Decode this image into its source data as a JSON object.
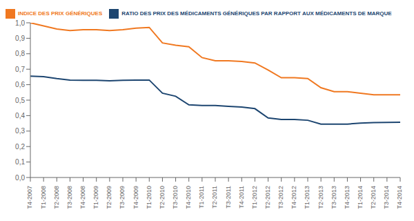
{
  "chart_data": {
    "type": "line",
    "categories": [
      "T4-2007",
      "T1-2008",
      "T2-2008",
      "T3-2008",
      "T4-2008",
      "T1-2009",
      "T2-2009",
      "T3-2009",
      "T4-2009",
      "T1-2010",
      "T2-2010",
      "T3-2010",
      "T4-2010",
      "T1-2011",
      "T2-2011",
      "T3-2011",
      "T4-2011",
      "T1-2012",
      "T2-2012",
      "T3-2012",
      "T4-2012",
      "T1-2013",
      "T2-2013",
      "T3-2013",
      "T4-2013",
      "T1-2014",
      "T2-2014",
      "T3-2014",
      "T4-2014"
    ],
    "series": [
      {
        "name": "INDICE DES PRIX GÉNÉRIQUES",
        "color": "#F07820",
        "values": [
          1.0,
          0.98,
          0.96,
          0.95,
          0.955,
          0.955,
          0.95,
          0.955,
          0.965,
          0.97,
          0.87,
          0.855,
          0.845,
          0.775,
          0.755,
          0.755,
          0.75,
          0.74,
          0.695,
          0.645,
          0.645,
          0.64,
          0.58,
          0.555,
          0.555,
          0.545,
          0.535,
          0.535,
          0.535
        ]
      },
      {
        "name": "RATIO DES PRIX DES MÉDICAMENTS GÉNÉRIQUES PAR RAPPORT AUX MÉDICAMENTS DE MARQUE",
        "color": "#1C4570",
        "values": [
          0.655,
          0.652,
          0.64,
          0.63,
          0.628,
          0.628,
          0.625,
          0.628,
          0.63,
          0.63,
          0.545,
          0.525,
          0.47,
          0.465,
          0.465,
          0.46,
          0.455,
          0.445,
          0.385,
          0.375,
          0.375,
          0.37,
          0.345,
          0.345,
          0.345,
          0.352,
          0.355,
          0.356,
          0.357
        ]
      }
    ],
    "ylim": [
      0.0,
      1.0
    ],
    "yticks": [
      {
        "value": 0.0,
        "label": "0,0"
      },
      {
        "value": 0.1,
        "label": "0,1"
      },
      {
        "value": 0.2,
        "label": "0,2"
      },
      {
        "value": 0.3,
        "label": "0,3"
      },
      {
        "value": 0.4,
        "label": "0,4"
      },
      {
        "value": 0.5,
        "label": "0,5"
      },
      {
        "value": 0.6,
        "label": "0,6"
      },
      {
        "value": 0.7,
        "label": "0,7"
      },
      {
        "value": 0.8,
        "label": "0,8"
      },
      {
        "value": 0.9,
        "label": "0,9"
      },
      {
        "value": 1.0,
        "label": "1,0"
      }
    ],
    "grid": false,
    "legend": "upper left"
  }
}
